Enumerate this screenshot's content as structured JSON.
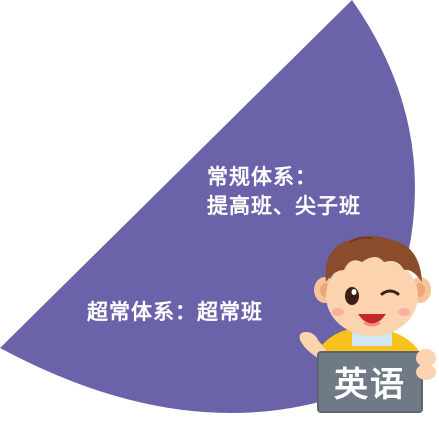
{
  "graphic": {
    "wedge_color": "#6B63AA",
    "regular_system_label": "常规体系：",
    "regular_system_classes": "提高班、尖子班",
    "super_system_line": "超常体系：超常班",
    "sign_text": "英语",
    "sign_color": "#6F7A86"
  },
  "icons": [
    "cartoon-boy-icon"
  ]
}
